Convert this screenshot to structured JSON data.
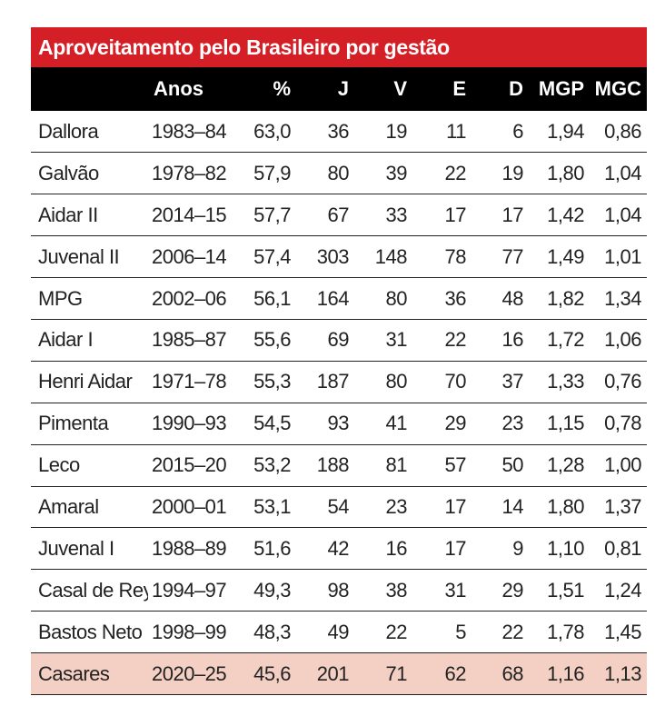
{
  "title": "Aproveitamento pelo Brasileiro por gestão",
  "colors": {
    "title_bg": "#d41f26",
    "header_bg": "#000000",
    "highlight_bg": "#f4d0c4"
  },
  "headers": [
    "",
    "Anos",
    "%",
    "J",
    "V",
    "E",
    "D",
    "MGP",
    "MGC"
  ],
  "rows": [
    {
      "name": "Dallora",
      "anos": "1983–84",
      "pct": "63,0",
      "j": "36",
      "v": "19",
      "e": "11",
      "d": "6",
      "mgp": "1,94",
      "mgc": "0,86"
    },
    {
      "name": "Galvão",
      "anos": "1978–82",
      "pct": "57,9",
      "j": "80",
      "v": "39",
      "e": "22",
      "d": "19",
      "mgp": "1,80",
      "mgc": "1,04"
    },
    {
      "name": "Aidar II",
      "anos": "2014–15",
      "pct": "57,7",
      "j": "67",
      "v": "33",
      "e": "17",
      "d": "17",
      "mgp": "1,42",
      "mgc": "1,04"
    },
    {
      "name": "Juvenal II",
      "anos": "2006–14",
      "pct": "57,4",
      "j": "303",
      "v": "148",
      "e": "78",
      "d": "77",
      "mgp": "1,49",
      "mgc": "1,01"
    },
    {
      "name": "MPG",
      "anos": "2002–06",
      "pct": "56,1",
      "j": "164",
      "v": "80",
      "e": "36",
      "d": "48",
      "mgp": "1,82",
      "mgc": "1,34"
    },
    {
      "name": "Aidar I",
      "anos": "1985–87",
      "pct": "55,6",
      "j": "69",
      "v": "31",
      "e": "22",
      "d": "16",
      "mgp": "1,72",
      "mgc": "1,06"
    },
    {
      "name": "Henri Aidar",
      "anos": "1971–78",
      "pct": "55,3",
      "j": "187",
      "v": "80",
      "e": "70",
      "d": "37",
      "mgp": "1,33",
      "mgc": "0,76"
    },
    {
      "name": "Pimenta",
      "anos": "1990–93",
      "pct": "54,5",
      "j": "93",
      "v": "41",
      "e": "29",
      "d": "23",
      "mgp": "1,15",
      "mgc": "0,78"
    },
    {
      "name": "Leco",
      "anos": "2015–20",
      "pct": "53,2",
      "j": "188",
      "v": "81",
      "e": "57",
      "d": "50",
      "mgp": "1,28",
      "mgc": "1,00"
    },
    {
      "name": "Amaral",
      "anos": "2000–01",
      "pct": "53,1",
      "j": "54",
      "v": "23",
      "e": "17",
      "d": "14",
      "mgp": "1,80",
      "mgc": "1,37"
    },
    {
      "name": "Juvenal I",
      "anos": "1988–89",
      "pct": "51,6",
      "j": "42",
      "v": "16",
      "e": "17",
      "d": "9",
      "mgp": "1,10",
      "mgc": "0,81"
    },
    {
      "name": "Casal de Rey",
      "anos": "1994–97",
      "pct": "49,3",
      "j": "98",
      "v": "38",
      "e": "31",
      "d": "29",
      "mgp": "1,51",
      "mgc": "1,24"
    },
    {
      "name": "Bastos Neto",
      "anos": "1998–99",
      "pct": "48,3",
      "j": "49",
      "v": "22",
      "e": "5",
      "d": "22",
      "mgp": "1,78",
      "mgc": "1,45"
    },
    {
      "name": "Casares",
      "anos": "2020–25",
      "pct": "45,6",
      "j": "201",
      "v": "71",
      "e": "62",
      "d": "68",
      "mgp": "1,16",
      "mgc": "1,13",
      "highlight": true
    }
  ]
}
